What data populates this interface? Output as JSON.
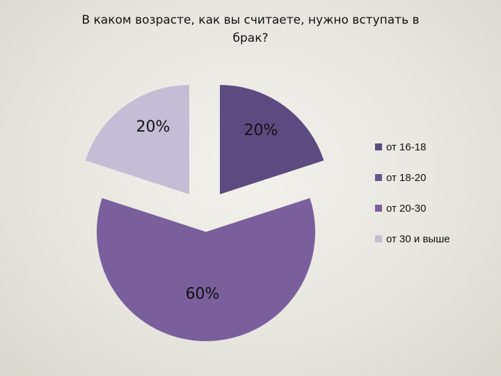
{
  "chart_data": {
    "type": "pie",
    "title": "В каком возрасте, как вы считаете, нужно вступать в брак?",
    "categories": [
      "от 16-18",
      "от 18-20",
      "от 20-30",
      "от 30 и выше"
    ],
    "values": [
      20,
      0,
      60,
      20
    ],
    "data_labels": [
      "20%",
      "",
      "60%",
      "20%"
    ],
    "colors": [
      "#5c4b80",
      "#6a5590",
      "#7a5f9c",
      "#c3bdd6"
    ],
    "exploded": true,
    "legend": {
      "position": "right",
      "entries": [
        "от 16-18",
        "от 18-20",
        "от 20-30",
        "от 30 и выше"
      ]
    }
  }
}
